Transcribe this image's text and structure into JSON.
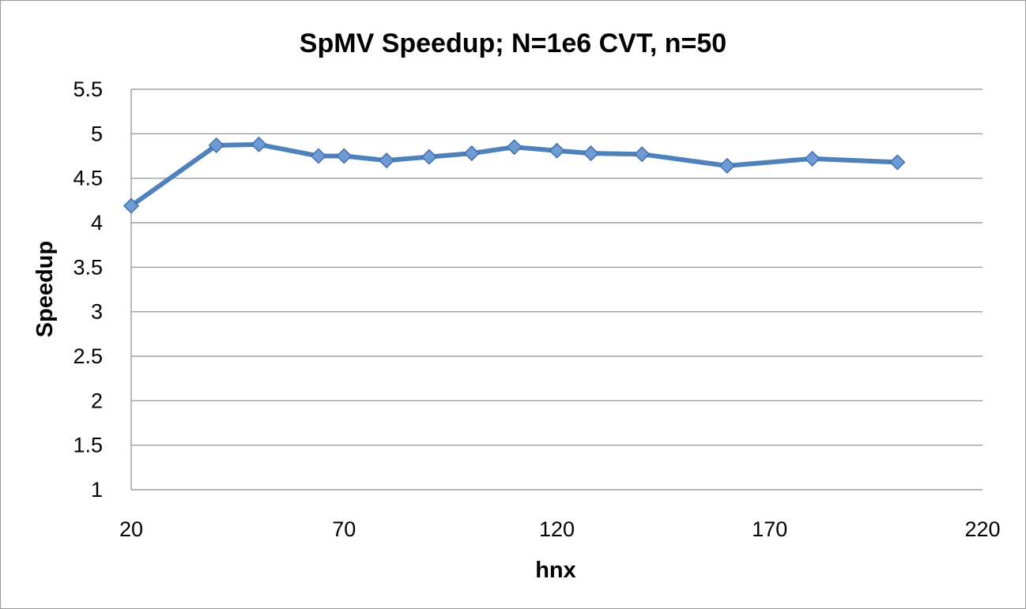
{
  "chart_data": {
    "type": "line",
    "title": "SpMV Speedup; N=1e6 CVT, n=50",
    "xlabel": "hnx",
    "ylabel": "Speedup",
    "xlim": [
      20,
      220
    ],
    "ylim": [
      1,
      5.5
    ],
    "xticks": [
      20,
      70,
      120,
      170,
      220
    ],
    "yticks": [
      1,
      1.5,
      2,
      2.5,
      3,
      3.5,
      4,
      4.5,
      5,
      5.5
    ],
    "xtick_labels": [
      "20",
      "70",
      "120",
      "170",
      "220"
    ],
    "ytick_labels": [
      "1",
      "1.5",
      "2",
      "2.5",
      "3",
      "3.5",
      "4",
      "4.5",
      "5",
      "5.5"
    ],
    "grid": "horizontal",
    "legend": "none",
    "series": [
      {
        "color": "#4f81bd",
        "marker": "diamond",
        "x": [
          20,
          40,
          50,
          64,
          70,
          80,
          90,
          100,
          110,
          120,
          128,
          140,
          160,
          180,
          200
        ],
        "y": [
          4.19,
          4.87,
          4.88,
          4.75,
          4.75,
          4.7,
          4.74,
          4.78,
          4.85,
          4.81,
          4.78,
          4.77,
          4.64,
          4.72,
          4.68
        ]
      }
    ]
  }
}
